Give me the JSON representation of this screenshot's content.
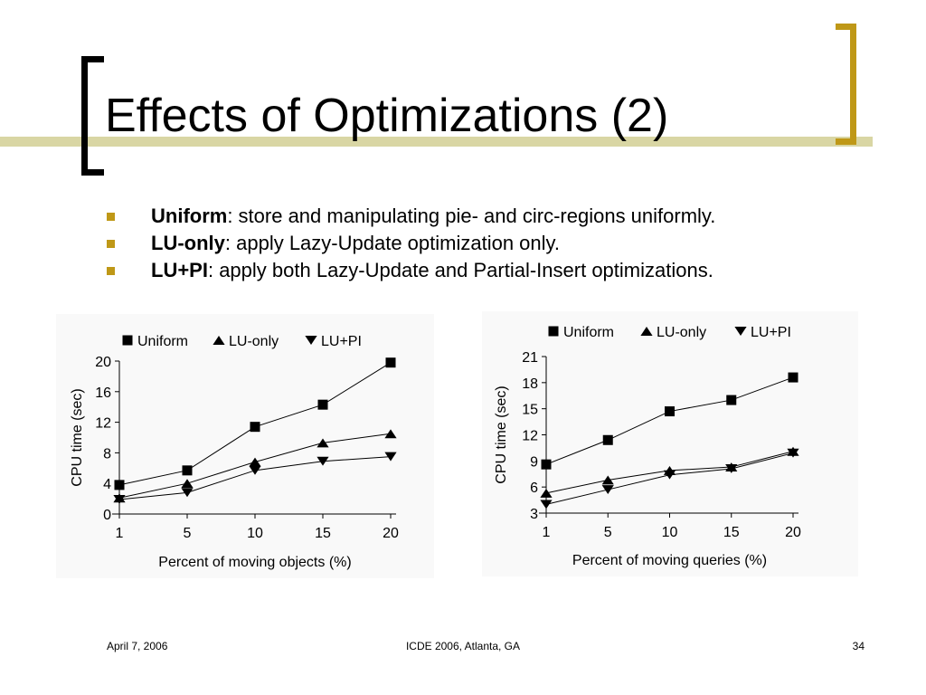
{
  "slide": {
    "title": "Effects of Optimizations (2)",
    "bullets": [
      {
        "term": "Uniform",
        "text": ": store and manipulating pie- and circ-regions uniformly."
      },
      {
        "term": "LU-only",
        "text": ": apply Lazy-Update optimization only."
      },
      {
        "term": "LU+PI",
        "text": ": apply both Lazy-Update and Partial-Insert optimizations."
      }
    ],
    "footer": {
      "left": "April 7, 2006",
      "center": "ICDE 2006, Atlanta, GA",
      "right": "34"
    },
    "colors": {
      "accent": "#bf9817",
      "deco_bar": "#d9d6a4",
      "chart_bg": "#f9f9f9"
    }
  },
  "chart_data": [
    {
      "type": "line",
      "title": "",
      "xlabel": "Percent of moving objects (%)",
      "ylabel": "CPU time (sec)",
      "x": [
        1,
        5,
        10,
        15,
        20
      ],
      "ylim": [
        0,
        20
      ],
      "yticks": [
        0,
        4,
        8,
        12,
        16,
        20
      ],
      "grid": false,
      "legend": "top",
      "series": [
        {
          "name": "Uniform",
          "marker": "square",
          "values": [
            3.8,
            5.7,
            11.4,
            14.3,
            19.8
          ]
        },
        {
          "name": "LU-only",
          "marker": "triangle-up",
          "values": [
            2.1,
            4.0,
            6.8,
            9.3,
            10.5
          ]
        },
        {
          "name": "LU+PI",
          "marker": "triangle-down",
          "values": [
            1.9,
            2.8,
            5.7,
            6.9,
            7.5
          ]
        }
      ]
    },
    {
      "type": "line",
      "title": "",
      "xlabel": "Percent of moving queries (%)",
      "ylabel": "CPU time (sec)",
      "x": [
        1,
        5,
        10,
        15,
        20
      ],
      "ylim": [
        3,
        21
      ],
      "yticks": [
        3,
        6,
        9,
        12,
        15,
        18,
        21
      ],
      "grid": false,
      "legend": "top",
      "series": [
        {
          "name": "Uniform",
          "marker": "square",
          "values": [
            8.6,
            11.4,
            14.7,
            16.0,
            18.6
          ]
        },
        {
          "name": "LU-only",
          "marker": "triangle-up",
          "values": [
            5.3,
            6.8,
            7.9,
            8.3,
            10.1
          ]
        },
        {
          "name": "LU+PI",
          "marker": "triangle-down",
          "values": [
            4.0,
            5.7,
            7.4,
            8.1,
            9.9
          ]
        }
      ]
    }
  ]
}
